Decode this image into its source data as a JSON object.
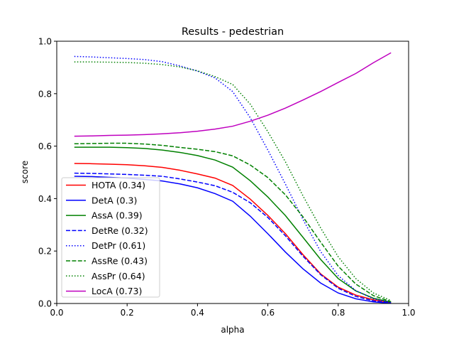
{
  "chart_data": {
    "type": "line",
    "title": "Results - pedestrian",
    "xlabel": "alpha",
    "ylabel": "score",
    "xlim": [
      0.0,
      1.0
    ],
    "ylim": [
      0.0,
      1.0
    ],
    "grid": false,
    "legend_position": "lower-left",
    "x_ticks": [
      "0.0",
      "0.2",
      "0.4",
      "0.6",
      "0.8",
      "1.0"
    ],
    "y_ticks": [
      "0.0",
      "0.2",
      "0.4",
      "0.6",
      "0.8",
      "1.0"
    ],
    "x": [
      0.05,
      0.1,
      0.15,
      0.2,
      0.25,
      0.3,
      0.35,
      0.4,
      0.45,
      0.5,
      0.55,
      0.6,
      0.65,
      0.7,
      0.75,
      0.8,
      0.85,
      0.9,
      0.95
    ],
    "series": [
      {
        "name": "HOTA (0.34)",
        "color": "#ff0000",
        "style": "solid",
        "values": [
          0.534,
          0.533,
          0.531,
          0.529,
          0.525,
          0.519,
          0.508,
          0.494,
          0.478,
          0.45,
          0.398,
          0.336,
          0.266,
          0.186,
          0.113,
          0.062,
          0.032,
          0.014,
          0.003
        ]
      },
      {
        "name": "DetA (0.3)",
        "color": "#0000ff",
        "style": "solid",
        "values": [
          0.485,
          0.484,
          0.481,
          0.478,
          0.473,
          0.467,
          0.456,
          0.441,
          0.419,
          0.39,
          0.333,
          0.266,
          0.196,
          0.132,
          0.078,
          0.04,
          0.018,
          0.006,
          0.001
        ]
      },
      {
        "name": "AssA (0.39)",
        "color": "#008000",
        "style": "solid",
        "values": [
          0.596,
          0.596,
          0.596,
          0.594,
          0.591,
          0.585,
          0.576,
          0.564,
          0.547,
          0.52,
          0.468,
          0.406,
          0.335,
          0.252,
          0.168,
          0.095,
          0.048,
          0.02,
          0.005
        ]
      },
      {
        "name": "DetRe (0.32)",
        "color": "#0000ff",
        "style": "dashed",
        "values": [
          0.497,
          0.496,
          0.494,
          0.492,
          0.489,
          0.485,
          0.475,
          0.463,
          0.449,
          0.424,
          0.384,
          0.328,
          0.258,
          0.18,
          0.11,
          0.058,
          0.027,
          0.01,
          0.002
        ]
      },
      {
        "name": "DetPr (0.61)",
        "color": "#0000ff",
        "style": "dotted",
        "values": [
          0.942,
          0.94,
          0.937,
          0.934,
          0.93,
          0.922,
          0.906,
          0.886,
          0.86,
          0.808,
          0.708,
          0.585,
          0.455,
          0.32,
          0.198,
          0.106,
          0.049,
          0.018,
          0.004
        ]
      },
      {
        "name": "AssRe (0.43)",
        "color": "#008000",
        "style": "dashed",
        "values": [
          0.609,
          0.61,
          0.611,
          0.611,
          0.608,
          0.603,
          0.595,
          0.588,
          0.579,
          0.563,
          0.528,
          0.48,
          0.414,
          0.33,
          0.234,
          0.142,
          0.074,
          0.03,
          0.007
        ]
      },
      {
        "name": "AssPr (0.64)",
        "color": "#008000",
        "style": "dotted",
        "values": [
          0.921,
          0.921,
          0.92,
          0.919,
          0.916,
          0.911,
          0.902,
          0.887,
          0.865,
          0.835,
          0.76,
          0.655,
          0.54,
          0.41,
          0.288,
          0.178,
          0.095,
          0.04,
          0.011
        ]
      },
      {
        "name": "LocA (0.73)",
        "color": "#bf00bf",
        "style": "solid",
        "values": [
          0.638,
          0.639,
          0.641,
          0.642,
          0.644,
          0.647,
          0.651,
          0.657,
          0.665,
          0.676,
          0.695,
          0.718,
          0.745,
          0.776,
          0.808,
          0.843,
          0.877,
          0.918,
          0.956
        ]
      }
    ]
  }
}
